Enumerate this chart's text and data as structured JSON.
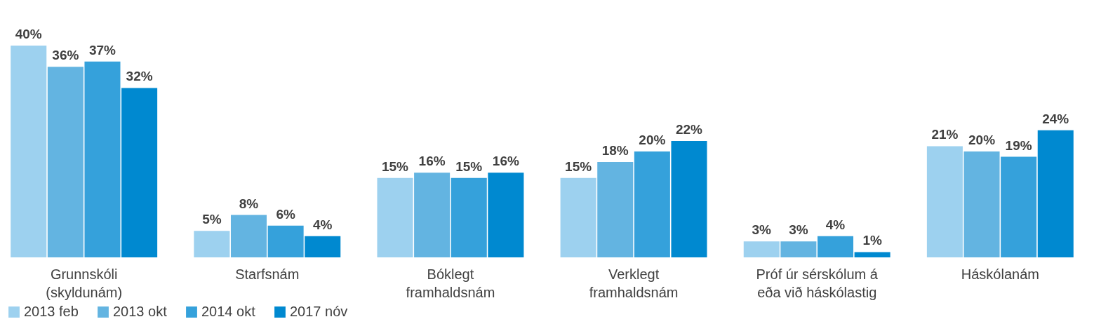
{
  "chart_data": {
    "type": "bar",
    "categories": [
      "Grunnskóli (skyldunám)",
      "Starfsnám",
      "Bóklegt framhaldsnám",
      "Verklegt framhaldsnám",
      "Próf úr sérskólum á eða við háskólastig",
      "Háskólanám"
    ],
    "series": [
      {
        "name": "2013 feb",
        "color": "#9dd1ef",
        "values": [
          40,
          5,
          15,
          15,
          3,
          21
        ],
        "value_labels": [
          "40%",
          "5%",
          "15%",
          "15%",
          "3%",
          "21%"
        ]
      },
      {
        "name": "2013 okt",
        "color": "#63b4e1",
        "values": [
          36,
          8,
          16,
          18,
          3,
          20
        ],
        "value_labels": [
          "36%",
          "8%",
          "16%",
          "18%",
          "3%",
          "20%"
        ]
      },
      {
        "name": "2014 okt",
        "color": "#35a1db",
        "values": [
          37,
          6,
          15,
          20,
          4,
          19
        ],
        "value_labels": [
          "37%",
          "6%",
          "15%",
          "20%",
          "4%",
          "19%"
        ]
      },
      {
        "name": "2017 nóv",
        "color": "#0089d0",
        "values": [
          32,
          4,
          16,
          22,
          1,
          24
        ],
        "value_labels": [
          "32%",
          "4%",
          "16%",
          "22%",
          "1%",
          "24%"
        ]
      }
    ],
    "legend": "bottom"
  }
}
